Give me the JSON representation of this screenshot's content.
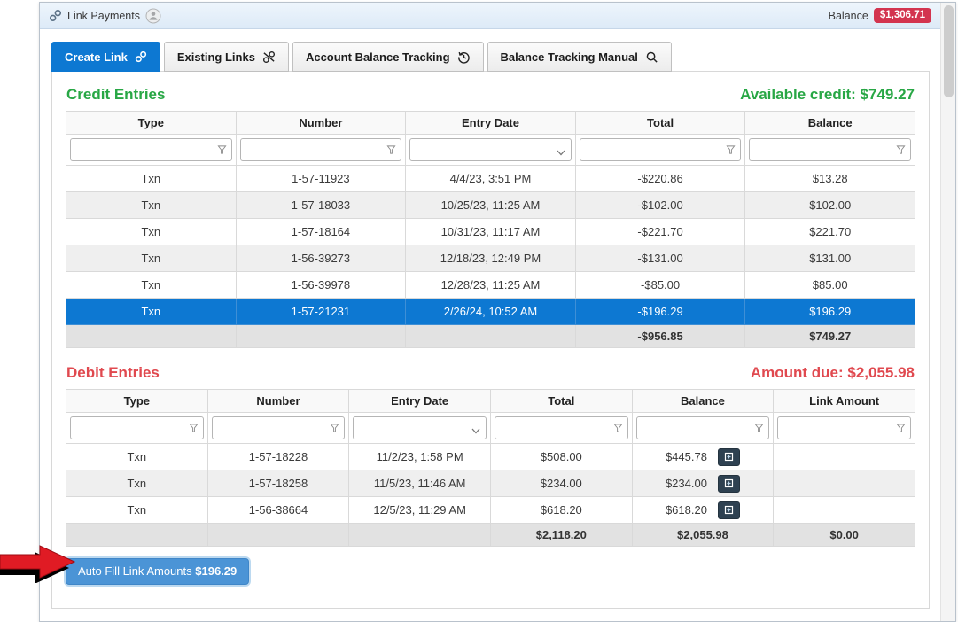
{
  "topbar": {
    "title": "Link Payments",
    "balance_label": "Balance",
    "balance_value": "$1,306.71"
  },
  "tabs": [
    {
      "label": "Create Link",
      "icon": "chain-link-icon",
      "active": true
    },
    {
      "label": "Existing Links",
      "icon": "broken-link-icon",
      "active": false
    },
    {
      "label": "Account Balance Tracking",
      "icon": "history-icon",
      "active": false
    },
    {
      "label": "Balance Tracking Manual",
      "icon": "magnifier-icon",
      "active": false
    }
  ],
  "credit": {
    "title": "Credit Entries",
    "summary": "Available credit: $749.27",
    "columns": [
      "Type",
      "Number",
      "Entry Date",
      "Total",
      "Balance"
    ],
    "rows": [
      {
        "type": "Txn",
        "number": "1-57-11923",
        "entry_date": "4/4/23, 3:51 PM",
        "total": "-$220.86",
        "balance": "$13.28"
      },
      {
        "type": "Txn",
        "number": "1-57-18033",
        "entry_date": "10/25/23, 11:25 AM",
        "total": "-$102.00",
        "balance": "$102.00"
      },
      {
        "type": "Txn",
        "number": "1-57-18164",
        "entry_date": "10/31/23, 11:17 AM",
        "total": "-$221.70",
        "balance": "$221.70"
      },
      {
        "type": "Txn",
        "number": "1-56-39273",
        "entry_date": "12/18/23, 12:49 PM",
        "total": "-$131.00",
        "balance": "$131.00"
      },
      {
        "type": "Txn",
        "number": "1-56-39978",
        "entry_date": "12/28/23, 11:25 AM",
        "total": "-$85.00",
        "balance": "$85.00"
      },
      {
        "type": "Txn",
        "number": "1-57-21231",
        "entry_date": "2/26/24, 10:52 AM",
        "total": "-$196.29",
        "balance": "$196.29"
      }
    ],
    "selected_row_index": 5,
    "footer": {
      "total": "-$956.85",
      "balance": "$749.27"
    }
  },
  "debit": {
    "title": "Debit Entries",
    "summary": "Amount due: $2,055.98",
    "columns": [
      "Type",
      "Number",
      "Entry Date",
      "Total",
      "Balance",
      "Link Amount"
    ],
    "rows": [
      {
        "type": "Txn",
        "number": "1-57-18228",
        "entry_date": "11/2/23, 1:58 PM",
        "total": "$508.00",
        "balance": "$445.78",
        "link_amount": ""
      },
      {
        "type": "Txn",
        "number": "1-57-18258",
        "entry_date": "11/5/23, 11:46 AM",
        "total": "$234.00",
        "balance": "$234.00",
        "link_amount": ""
      },
      {
        "type": "Txn",
        "number": "1-56-38664",
        "entry_date": "12/5/23, 11:29 AM",
        "total": "$618.20",
        "balance": "$618.20",
        "link_amount": ""
      }
    ],
    "footer": {
      "total": "$2,118.20",
      "balance": "$2,055.98",
      "link_amount": "$0.00"
    }
  },
  "autofill_button": {
    "label": "Auto Fill Link Amounts",
    "amount": "$196.29"
  },
  "icons": {
    "balance_row_button": "box-plus-transfer",
    "filter": "funnel",
    "entry_date_filter": "chevron-down",
    "title_user": "person-circle"
  },
  "colors": {
    "active_tab_blue": "#0d78d2",
    "selected_row_blue": "#0d78d2",
    "credit_green": "#28a745",
    "debit_red": "#e0494f",
    "balance_badge_red": "#d3344f",
    "row_mini_button_navy": "#2e4151",
    "autofill_blue": "#4b94d6",
    "annotation_arrow_red": "#e01b24"
  }
}
